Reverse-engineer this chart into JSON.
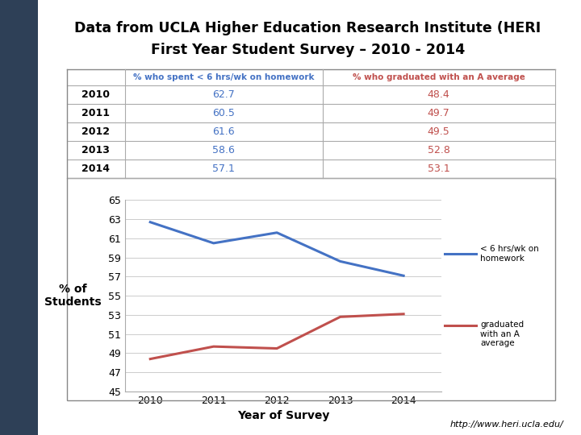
{
  "title_line1": "Data from UCLA Higher Education Research Institute (HERI",
  "title_line2": "First Year Student Survey – 2010 - 2014",
  "years": [
    2010,
    2011,
    2012,
    2013,
    2014
  ],
  "homework_values": [
    62.7,
    60.5,
    61.6,
    58.6,
    57.1
  ],
  "grade_values": [
    48.4,
    49.7,
    49.5,
    52.8,
    53.1
  ],
  "homework_color": "#4472C4",
  "grade_color": "#C0504D",
  "table_header_homework": "% who spent < 6 hrs/wk on homework",
  "table_header_grade": "% who graduated with an A average",
  "xlabel": "Year of Survey",
  "ylabel": "% of\nStudents",
  "legend_homework": "< 6 hrs/wk on\nhomework",
  "legend_grade": "graduated\nwith an A\naverage",
  "ylim": [
    45,
    65
  ],
  "yticks": [
    45,
    47,
    49,
    51,
    53,
    55,
    57,
    59,
    61,
    63,
    65
  ],
  "bg_color": "#FFFFFF",
  "left_panel_color": "#2E4057",
  "url_text": "http://www.heri.ucla.edu/",
  "table_line_color": "#AAAAAA",
  "grid_color": "#CCCCCC"
}
